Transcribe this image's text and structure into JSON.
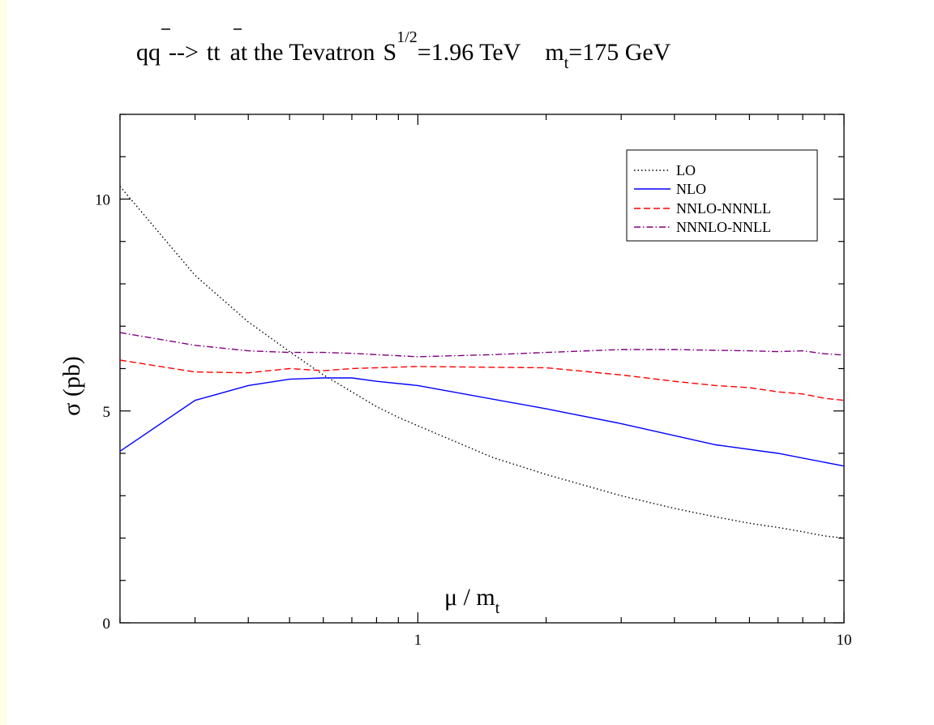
{
  "chart_data": {
    "type": "line",
    "title": {
      "process_lhs": "qq",
      "arrow": "-->",
      "process_rhs": "tt",
      "mid": "at the Tevatron",
      "S": "S",
      "S_exp": "1/2",
      "energy": "=1.96 TeV",
      "m": "m",
      "m_sub": "t",
      "mass": "=175 GeV"
    },
    "xlabel": {
      "main": "μ / m",
      "sub": "t"
    },
    "ylabel": "σ  (pb)",
    "x_scale": "log",
    "xlim": [
      0.2,
      10
    ],
    "ylim": [
      0,
      12
    ],
    "x_ticks": [
      {
        "value": 1,
        "label": "1"
      },
      {
        "value": 10,
        "label": "10"
      }
    ],
    "y_ticks": [
      {
        "value": 0,
        "label": "0"
      },
      {
        "value": 5,
        "label": "5"
      },
      {
        "value": 10,
        "label": "10"
      }
    ],
    "legend_position": "top-right",
    "grid": false,
    "series": [
      {
        "name": "LO",
        "color": "#000000",
        "style": "dotted",
        "x": [
          0.2,
          0.3,
          0.4,
          0.5,
          0.6,
          0.7,
          0.8,
          0.9,
          1.0,
          1.5,
          2.0,
          3.0,
          4.0,
          5.0,
          6.0,
          7.0,
          8.0,
          9.0,
          10.0
        ],
        "y": [
          10.3,
          8.2,
          7.1,
          6.4,
          5.85,
          5.45,
          5.1,
          4.85,
          4.65,
          3.9,
          3.5,
          3.0,
          2.7,
          2.5,
          2.35,
          2.25,
          2.15,
          2.05,
          2.0
        ]
      },
      {
        "name": "NLO",
        "color": "#0000ff",
        "style": "solid",
        "x": [
          0.2,
          0.3,
          0.4,
          0.5,
          0.6,
          0.7,
          0.8,
          1.0,
          2.0,
          3.0,
          5.0,
          7.0,
          10.0
        ],
        "y": [
          4.05,
          5.25,
          5.6,
          5.75,
          5.78,
          5.78,
          5.7,
          5.6,
          5.05,
          4.7,
          4.2,
          4.0,
          3.7
        ]
      },
      {
        "name": "NNLO-NNNLL",
        "color": "#ff0000",
        "style": "dashed",
        "x": [
          0.2,
          0.3,
          0.4,
          0.5,
          0.6,
          0.7,
          0.8,
          1.0,
          1.5,
          2.0,
          3.0,
          4.0,
          5.0,
          6.0,
          7.0,
          8.0,
          9.0,
          10.0
        ],
        "y": [
          6.2,
          5.92,
          5.9,
          6.0,
          5.95,
          6.0,
          6.02,
          6.05,
          6.03,
          6.02,
          5.85,
          5.7,
          5.6,
          5.55,
          5.45,
          5.4,
          5.3,
          5.25
        ]
      },
      {
        "name": "NNNLO-NNLL",
        "color": "#800080",
        "style": "dashdot",
        "x": [
          0.2,
          0.3,
          0.4,
          0.5,
          0.6,
          0.7,
          0.8,
          1.0,
          1.5,
          2.0,
          3.0,
          4.0,
          5.0,
          6.0,
          7.0,
          8.0,
          9.0,
          10.0
        ],
        "y": [
          6.85,
          6.55,
          6.42,
          6.38,
          6.38,
          6.36,
          6.33,
          6.28,
          6.33,
          6.38,
          6.45,
          6.45,
          6.43,
          6.42,
          6.4,
          6.42,
          6.35,
          6.32
        ]
      }
    ]
  }
}
